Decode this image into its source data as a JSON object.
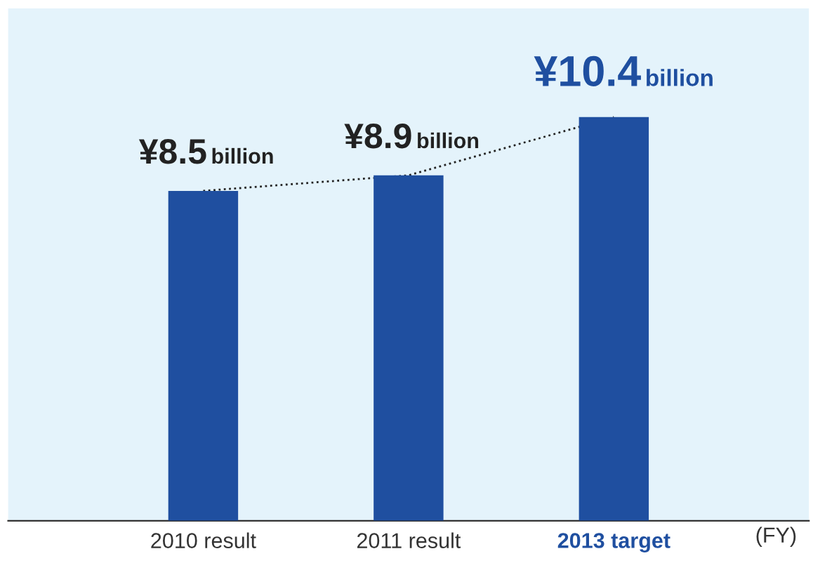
{
  "chart_data": {
    "type": "bar",
    "categories": [
      "2010 result",
      "2011 result",
      "2013 target"
    ],
    "xlabel": "(FY)",
    "ylim": [
      0,
      13.2
    ],
    "series": [
      {
        "color": "#1f4fa0",
        "values": [
          8.5,
          8.9,
          10.4
        ],
        "value_labels": [
          "¥8.5 billion",
          "¥8.9 billion",
          "¥10.4 billion"
        ]
      },
      {
        "type": "line",
        "color": "#222222",
        "line_style": "dotted",
        "values": [
          8.5,
          8.9,
          10.4
        ]
      }
    ],
    "grid": false,
    "legend": false
  }
}
